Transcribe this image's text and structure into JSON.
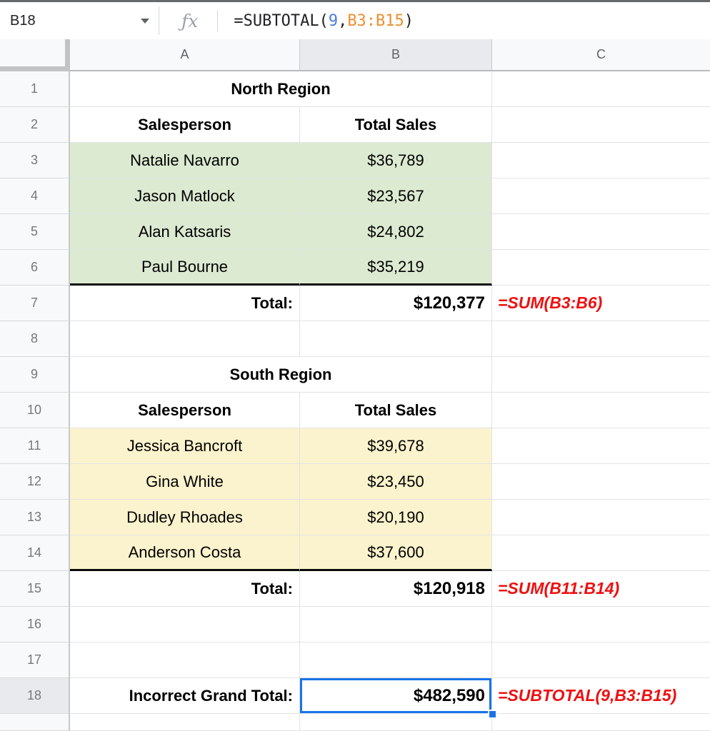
{
  "colors": {
    "selection_blue": "#1a73e8",
    "green_fill": "#dcead2",
    "yellow_fill": "#fbf3cd",
    "formula_red": "#ee1111",
    "token_number_blue": "#4a7de0",
    "token_range_orange": "#ef8e2e",
    "header_bg": "#f8f9fa",
    "selected_header_bg": "#e8eaed"
  },
  "formula_bar": {
    "name_box_value": "B18",
    "fx_icon": "ƒx",
    "formula_full": "=SUBTOTAL(9,B3:B15)",
    "formula_tokens": [
      {
        "text": "=SUBTOTAL(",
        "type": "plain"
      },
      {
        "text": "9",
        "type": "number"
      },
      {
        "text": ",",
        "type": "plain"
      },
      {
        "text": "B3:B15",
        "type": "range"
      },
      {
        "text": ")",
        "type": "plain"
      }
    ]
  },
  "grid": {
    "selected_cell": "B18",
    "selected_column": "B",
    "selected_row": "18",
    "column_headers": [
      {
        "label": "A",
        "selected": false
      },
      {
        "label": "B",
        "selected": true
      },
      {
        "label": "C",
        "selected": false
      }
    ],
    "rows": [
      {
        "num": "1",
        "kind": "title",
        "a": "North Region"
      },
      {
        "num": "2",
        "kind": "colhead",
        "a": "Salesperson",
        "b": "Total Sales"
      },
      {
        "num": "3",
        "kind": "data",
        "fill": "green",
        "a": "Natalie Navarro",
        "b": "$36,789"
      },
      {
        "num": "4",
        "kind": "data",
        "fill": "green",
        "a": "Jason Matlock",
        "b": "$23,567"
      },
      {
        "num": "5",
        "kind": "data",
        "fill": "green",
        "a": "Alan Katsaris",
        "b": "$24,802"
      },
      {
        "num": "6",
        "kind": "data",
        "fill": "green",
        "a": "Paul Bourne",
        "b": "$35,219"
      },
      {
        "num": "7",
        "kind": "total",
        "a": "Total:",
        "b": "$120,377",
        "c": "=SUM(B3:B6)"
      },
      {
        "num": "8",
        "kind": "empty"
      },
      {
        "num": "9",
        "kind": "title",
        "a": "South Region"
      },
      {
        "num": "10",
        "kind": "colhead",
        "a": "Salesperson",
        "b": "Total Sales"
      },
      {
        "num": "11",
        "kind": "data",
        "fill": "yellow",
        "a": "Jessica Bancroft",
        "b": "$39,678"
      },
      {
        "num": "12",
        "kind": "data",
        "fill": "yellow",
        "a": "Gina White",
        "b": "$23,450"
      },
      {
        "num": "13",
        "kind": "data",
        "fill": "yellow",
        "a": "Dudley Rhoades",
        "b": "$20,190"
      },
      {
        "num": "14",
        "kind": "data",
        "fill": "yellow",
        "a": "Anderson Costa",
        "b": "$37,600"
      },
      {
        "num": "15",
        "kind": "total",
        "a": "Total:",
        "b": "$120,918",
        "c": "=SUM(B11:B14)"
      },
      {
        "num": "16",
        "kind": "empty"
      },
      {
        "num": "17",
        "kind": "empty"
      },
      {
        "num": "18",
        "kind": "grand",
        "a": "Incorrect Grand Total:",
        "b": "$482,590",
        "c": "=SUBTOTAL(9,B3:B15)"
      }
    ]
  }
}
